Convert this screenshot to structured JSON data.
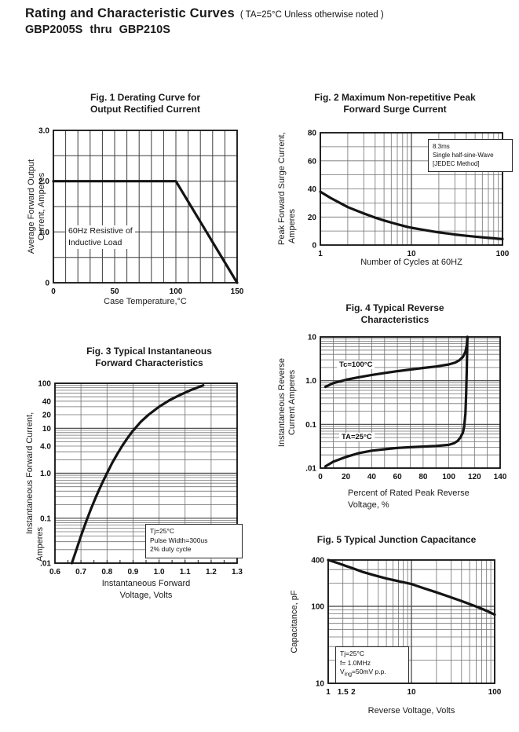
{
  "header": {
    "title": "Rating and Characteristic Curves",
    "title_note": "( TA=25°C Unless otherwise noted )",
    "part_range": "GBP2005S thru GBP210S"
  },
  "colors": {
    "ink": "#1a1a1a",
    "grid": "#707070",
    "grid_major": "#3d3d3d",
    "curve": "#141414",
    "background": "#ffffff"
  },
  "chart_data": [
    {
      "id": "fig1",
      "type": "line",
      "title": "Fig. 1 Derating Curve for Output Rectified Current",
      "title_lines": [
        "Fig. 1 Derating Curve for",
        "Output Rectified Current"
      ],
      "xlabel": [
        "Case Temperature,°C"
      ],
      "ylabel": [
        "Average Forward Output",
        "Current, Amperes"
      ],
      "x_axis": {
        "scale": "linear",
        "min": 0,
        "max": 150,
        "minor_step": 10,
        "major_ticks": [
          0,
          50,
          100,
          150
        ],
        "tick_labels": [
          "0",
          "50",
          "100",
          "150"
        ]
      },
      "y_axis": {
        "scale": "linear",
        "min": 0,
        "max": 3.0,
        "minor_step": 0.5,
        "major_ticks": [
          0,
          1.0,
          2.0,
          3.0
        ],
        "tick_labels": [
          "0",
          "1.0",
          "2.0",
          "3.0"
        ]
      },
      "grid": true,
      "annotation": [
        "60Hz Resistive of",
        "Inductive Load"
      ],
      "series": [
        {
          "name": "output-current-derating",
          "points": [
            [
              0,
              2.0
            ],
            [
              100,
              2.0
            ],
            [
              150,
              0
            ]
          ]
        }
      ]
    },
    {
      "id": "fig2",
      "type": "line",
      "title": "Fig. 2 Maximum Non-repetitive Peak Forward Surge Current",
      "title_lines": [
        "Fig. 2 Maximum Non-repetitive Peak",
        "Forward Surge Current"
      ],
      "xlabel": [
        "Number of Cycles at 60HZ"
      ],
      "ylabel": [
        "Peak Forward Surge Current,",
        "Amperes"
      ],
      "x_axis": {
        "scale": "log",
        "min": 1,
        "max": 100,
        "major_ticks": [
          1,
          10,
          100
        ],
        "tick_labels": [
          "1",
          "10",
          "100"
        ]
      },
      "y_axis": {
        "scale": "linear",
        "min": 0,
        "max": 80,
        "minor_step": 10,
        "major_ticks": [
          0,
          20,
          40,
          60,
          80
        ],
        "tick_labels": [
          "0",
          "20",
          "40",
          "60",
          "80"
        ]
      },
      "grid": true,
      "annotation": [
        "8.3ms",
        "Single half-sine-Wave",
        "[JEDEC Method]"
      ],
      "series": [
        {
          "name": "surge-current",
          "points": [
            [
              1,
              38
            ],
            [
              1.3,
              33.5
            ],
            [
              1.7,
              29.5
            ],
            [
              2,
              27
            ],
            [
              2.5,
              24.5
            ],
            [
              3,
              22.5
            ],
            [
              4,
              19.5
            ],
            [
              5,
              17.5
            ],
            [
              6,
              16
            ],
            [
              7,
              14.8
            ],
            [
              8,
              13.8
            ],
            [
              9,
              13
            ],
            [
              10,
              12.3
            ],
            [
              13,
              11
            ],
            [
              16,
              10
            ],
            [
              20,
              9
            ],
            [
              25,
              8.2
            ],
            [
              30,
              7.5
            ],
            [
              40,
              6.6
            ],
            [
              50,
              6
            ],
            [
              60,
              5.5
            ],
            [
              70,
              5.1
            ],
            [
              80,
              4.8
            ],
            [
              90,
              4.5
            ],
            [
              100,
              4.3
            ]
          ]
        }
      ]
    },
    {
      "id": "fig3",
      "type": "line",
      "title": "Fig. 3 Typical Instantaneous Forward Characteristics",
      "title_lines": [
        "Fig. 3 Typical Instantaneous",
        "Forward Characteristics"
      ],
      "xlabel": [
        "Instantaneous Forward",
        "Voltage, Volts"
      ],
      "ylabel": [
        "Instantaneous Forward Current,",
        "Amperes"
      ],
      "x_axis": {
        "scale": "linear",
        "min": 0.6,
        "max": 1.3,
        "minor_step": 0.1,
        "tick_step": 0.05,
        "major_ticks": [
          0.6,
          0.7,
          0.8,
          0.9,
          1.0,
          1.1,
          1.2,
          1.3
        ],
        "tick_labels": [
          "0.6",
          "0.7",
          "0.8",
          "0.9",
          "1.0",
          "1.1",
          "1.2",
          "1.3"
        ]
      },
      "y_axis": {
        "scale": "log",
        "min": 0.01,
        "max": 100,
        "major_ticks": [
          100,
          40,
          20,
          10,
          4.0,
          1.0,
          0.1,
          0.01
        ],
        "tick_labels": [
          "100",
          "40",
          "20",
          "10",
          "4.0",
          "1.0",
          "0.1",
          ".01"
        ]
      },
      "grid": true,
      "annotation": [
        "Tj=25°C",
        "Pulse Width=300us",
        "2% duty cycle"
      ],
      "series": [
        {
          "name": "forward-characteristic",
          "points": [
            [
              0.665,
              0.01
            ],
            [
              0.68,
              0.018
            ],
            [
              0.7,
              0.04
            ],
            [
              0.72,
              0.085
            ],
            [
              0.74,
              0.17
            ],
            [
              0.76,
              0.32
            ],
            [
              0.78,
              0.58
            ],
            [
              0.8,
              1.0
            ],
            [
              0.82,
              1.7
            ],
            [
              0.84,
              2.7
            ],
            [
              0.86,
              4.2
            ],
            [
              0.88,
              6.2
            ],
            [
              0.9,
              8.8
            ],
            [
              0.93,
              14
            ],
            [
              0.96,
              20
            ],
            [
              1.0,
              30
            ],
            [
              1.04,
              42
            ],
            [
              1.08,
              55
            ],
            [
              1.12,
              70
            ],
            [
              1.17,
              90
            ]
          ]
        }
      ]
    },
    {
      "id": "fig4",
      "type": "line",
      "title": "Fig. 4 Typical Reverse Characteristics",
      "title_lines": [
        "Fig. 4 Typical Reverse",
        "Characteristics"
      ],
      "xlabel": [
        "Percent of Rated Peak Reverse",
        "Voltage, %"
      ],
      "ylabel": [
        "Instantaneous Reverse",
        "Current Amperes"
      ],
      "x_axis": {
        "scale": "linear",
        "min": 0,
        "max": 140,
        "minor_step": 10,
        "major_ticks": [
          0,
          20,
          40,
          60,
          80,
          100,
          120,
          140
        ],
        "tick_labels": [
          "0",
          "20",
          "40",
          "60",
          "80",
          "100",
          "120",
          "140"
        ]
      },
      "y_axis": {
        "scale": "log",
        "min": 0.01,
        "max": 10,
        "major_ticks": [
          10,
          1.0,
          0.1,
          0.01
        ],
        "tick_labels": [
          "10",
          "1.0",
          "0.1",
          ".01"
        ]
      },
      "grid": true,
      "series": [
        {
          "name": "reverse-current-tc100",
          "label": "Tc=100°C",
          "points": [
            [
              4,
              0.72
            ],
            [
              10,
              0.88
            ],
            [
              20,
              1.05
            ],
            [
              30,
              1.2
            ],
            [
              40,
              1.35
            ],
            [
              50,
              1.5
            ],
            [
              60,
              1.65
            ],
            [
              70,
              1.8
            ],
            [
              80,
              1.95
            ],
            [
              90,
              2.1
            ],
            [
              100,
              2.35
            ],
            [
              105,
              2.6
            ],
            [
              108,
              2.9
            ],
            [
              111,
              3.5
            ],
            [
              113,
              4.6
            ],
            [
              114,
              6.5
            ],
            [
              114.5,
              10
            ]
          ]
        },
        {
          "name": "reverse-current-ta25",
          "label": "TA=25°C",
          "points": [
            [
              4,
              0.011
            ],
            [
              10,
              0.014
            ],
            [
              20,
              0.018
            ],
            [
              30,
              0.022
            ],
            [
              40,
              0.025
            ],
            [
              50,
              0.027
            ],
            [
              60,
              0.029
            ],
            [
              70,
              0.03
            ],
            [
              80,
              0.031
            ],
            [
              90,
              0.032
            ],
            [
              100,
              0.034
            ],
            [
              104,
              0.037
            ],
            [
              107,
              0.042
            ],
            [
              109,
              0.05
            ],
            [
              111,
              0.065
            ],
            [
              112,
              0.09
            ],
            [
              113,
              0.18
            ],
            [
              113.5,
              0.5
            ],
            [
              114,
              1.8
            ],
            [
              114.5,
              10
            ]
          ]
        }
      ]
    },
    {
      "id": "fig5",
      "type": "line",
      "title": "Fig. 5 Typical Junction Capacitance",
      "title_lines": [
        "Fig. 5 Typical Junction Capacitance"
      ],
      "xlabel": [
        "Reverse Voltage, Volts"
      ],
      "ylabel": [
        "Capacitance, pF"
      ],
      "x_axis": {
        "scale": "log",
        "min": 1,
        "max": 100,
        "extra_lines": [
          1.5
        ],
        "major_ticks": [
          1,
          1.5,
          2,
          10,
          100
        ],
        "tick_labels": [
          "1",
          "1.5",
          "2",
          "10",
          "100"
        ]
      },
      "y_axis": {
        "scale": "log",
        "min": 10,
        "max": 400,
        "major_ticks": [
          400,
          100,
          10
        ],
        "tick_labels": [
          "400",
          "100",
          "10"
        ]
      },
      "grid": true,
      "annotation": [
        "Tj=25°C",
        "f= 1.0MHz"
      ],
      "annotation_v": {
        "pre": "V",
        "sub": "ing",
        "post": "=50mV p.p."
      },
      "series": [
        {
          "name": "junction-capacitance",
          "points": [
            [
              1,
              400
            ],
            [
              1.3,
              365
            ],
            [
              1.7,
              330
            ],
            [
              2,
              310
            ],
            [
              2.6,
              280
            ],
            [
              3.5,
              255
            ],
            [
              5,
              230
            ],
            [
              7,
              212
            ],
            [
              10,
              195
            ],
            [
              14,
              172
            ],
            [
              20,
              152
            ],
            [
              28,
              134
            ],
            [
              40,
              117
            ],
            [
              55,
              103
            ],
            [
              70,
              93
            ],
            [
              85,
              85
            ],
            [
              100,
              78
            ]
          ]
        }
      ]
    }
  ]
}
